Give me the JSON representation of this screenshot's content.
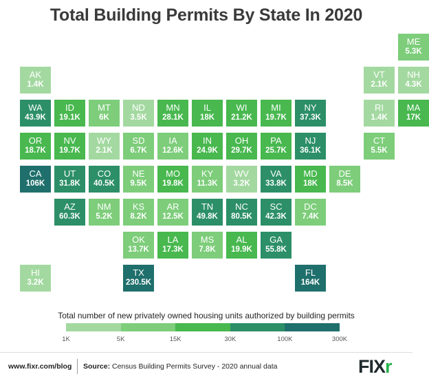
{
  "title": "Total Building Permits By State In 2020",
  "legend": {
    "title": "Total number of new privately owned housing units authorized by building permits",
    "ticks": [
      "1K",
      "5K",
      "15K",
      "30K",
      "100K",
      "300K"
    ],
    "thresholds": [
      1000,
      5000,
      15000,
      30000,
      100000,
      300000
    ],
    "colors": [
      "#a3d9a0",
      "#7dcd7a",
      "#48b84f",
      "#2c8f68",
      "#1f6f6c",
      "#0f4f55"
    ]
  },
  "states": [
    {
      "abbr": "ME",
      "label": "5.3K",
      "value": 5300,
      "row": 0,
      "col": 11
    },
    {
      "abbr": "AK",
      "label": "1.4K",
      "value": 1400,
      "row": 1,
      "col": 0
    },
    {
      "abbr": "VT",
      "label": "2.1K",
      "value": 2100,
      "row": 1,
      "col": 10
    },
    {
      "abbr": "NH",
      "label": "4.3K",
      "value": 4300,
      "row": 1,
      "col": 11
    },
    {
      "abbr": "WA",
      "label": "43.9K",
      "value": 43900,
      "row": 2,
      "col": 0
    },
    {
      "abbr": "ID",
      "label": "19.1K",
      "value": 19100,
      "row": 2,
      "col": 1
    },
    {
      "abbr": "MT",
      "label": "6K",
      "value": 6000,
      "row": 2,
      "col": 2
    },
    {
      "abbr": "ND",
      "label": "3.5K",
      "value": 3500,
      "row": 2,
      "col": 3
    },
    {
      "abbr": "MN",
      "label": "28.1K",
      "value": 28100,
      "row": 2,
      "col": 4
    },
    {
      "abbr": "IL",
      "label": "18K",
      "value": 18000,
      "row": 2,
      "col": 5
    },
    {
      "abbr": "WI",
      "label": "21.2K",
      "value": 21200,
      "row": 2,
      "col": 6
    },
    {
      "abbr": "MI",
      "label": "19.7K",
      "value": 19700,
      "row": 2,
      "col": 7
    },
    {
      "abbr": "NY",
      "label": "37.3K",
      "value": 37300,
      "row": 2,
      "col": 8
    },
    {
      "abbr": "RI",
      "label": "1.4K",
      "value": 1400,
      "row": 2,
      "col": 10
    },
    {
      "abbr": "MA",
      "label": "17K",
      "value": 17000,
      "row": 2,
      "col": 11
    },
    {
      "abbr": "OR",
      "label": "18.7K",
      "value": 18700,
      "row": 3,
      "col": 0
    },
    {
      "abbr": "NV",
      "label": "19.7K",
      "value": 19700,
      "row": 3,
      "col": 1
    },
    {
      "abbr": "WY",
      "label": "2.1K",
      "value": 2100,
      "row": 3,
      "col": 2
    },
    {
      "abbr": "SD",
      "label": "6.7K",
      "value": 6700,
      "row": 3,
      "col": 3
    },
    {
      "abbr": "IA",
      "label": "12.6K",
      "value": 12600,
      "row": 3,
      "col": 4
    },
    {
      "abbr": "IN",
      "label": "24.9K",
      "value": 24900,
      "row": 3,
      "col": 5
    },
    {
      "abbr": "OH",
      "label": "29.7K",
      "value": 29700,
      "row": 3,
      "col": 6
    },
    {
      "abbr": "PA",
      "label": "25.7K",
      "value": 25700,
      "row": 3,
      "col": 7
    },
    {
      "abbr": "NJ",
      "label": "36.1K",
      "value": 36100,
      "row": 3,
      "col": 8
    },
    {
      "abbr": "CT",
      "label": "5.5K",
      "value": 5500,
      "row": 3,
      "col": 10
    },
    {
      "abbr": "CA",
      "label": "106K",
      "value": 106000,
      "row": 4,
      "col": 0
    },
    {
      "abbr": "UT",
      "label": "31.8K",
      "value": 31800,
      "row": 4,
      "col": 1
    },
    {
      "abbr": "CO",
      "label": "40.5K",
      "value": 40500,
      "row": 4,
      "col": 2
    },
    {
      "abbr": "NE",
      "label": "9.5K",
      "value": 9500,
      "row": 4,
      "col": 3
    },
    {
      "abbr": "MO",
      "label": "19.8K",
      "value": 19800,
      "row": 4,
      "col": 4
    },
    {
      "abbr": "KY",
      "label": "11.3K",
      "value": 11300,
      "row": 4,
      "col": 5
    },
    {
      "abbr": "WV",
      "label": "3.2K",
      "value": 3200,
      "row": 4,
      "col": 6
    },
    {
      "abbr": "VA",
      "label": "33.8K",
      "value": 33800,
      "row": 4,
      "col": 7
    },
    {
      "abbr": "MD",
      "label": "18K",
      "value": 18000,
      "row": 4,
      "col": 8
    },
    {
      "abbr": "DE",
      "label": "8.5K",
      "value": 8500,
      "row": 4,
      "col": 9
    },
    {
      "abbr": "AZ",
      "label": "60.3K",
      "value": 60300,
      "row": 5,
      "col": 1
    },
    {
      "abbr": "NM",
      "label": "5.2K",
      "value": 5200,
      "row": 5,
      "col": 2
    },
    {
      "abbr": "KS",
      "label": "8.2K",
      "value": 8200,
      "row": 5,
      "col": 3
    },
    {
      "abbr": "AR",
      "label": "12.5K",
      "value": 12500,
      "row": 5,
      "col": 4
    },
    {
      "abbr": "TN",
      "label": "49.8K",
      "value": 49800,
      "row": 5,
      "col": 5
    },
    {
      "abbr": "NC",
      "label": "80.5K",
      "value": 80500,
      "row": 5,
      "col": 6
    },
    {
      "abbr": "SC",
      "label": "42.3K",
      "value": 42300,
      "row": 5,
      "col": 7
    },
    {
      "abbr": "DC",
      "label": "7.4K",
      "value": 7400,
      "row": 5,
      "col": 8
    },
    {
      "abbr": "OK",
      "label": "13.7K",
      "value": 13700,
      "row": 6,
      "col": 3
    },
    {
      "abbr": "LA",
      "label": "17.3K",
      "value": 17300,
      "row": 6,
      "col": 4
    },
    {
      "abbr": "MS",
      "label": "7.8K",
      "value": 7800,
      "row": 6,
      "col": 5
    },
    {
      "abbr": "AL",
      "label": "19.9K",
      "value": 19900,
      "row": 6,
      "col": 6
    },
    {
      "abbr": "GA",
      "label": "55.8K",
      "value": 55800,
      "row": 6,
      "col": 7
    },
    {
      "abbr": "HI",
      "label": "3.2K",
      "value": 3200,
      "row": 7,
      "col": 0
    },
    {
      "abbr": "TX",
      "label": "230.5K",
      "value": 230500,
      "row": 7,
      "col": 3
    },
    {
      "abbr": "FL",
      "label": "164K",
      "value": 164000,
      "row": 7,
      "col": 8
    }
  ],
  "footer": {
    "site": "www.fixr.com/blog",
    "source_label": "Source:",
    "source_text": " Census Building Permits Survey - 2020 annual data"
  },
  "logo": {
    "text": "FIX",
    "accent": "r"
  }
}
